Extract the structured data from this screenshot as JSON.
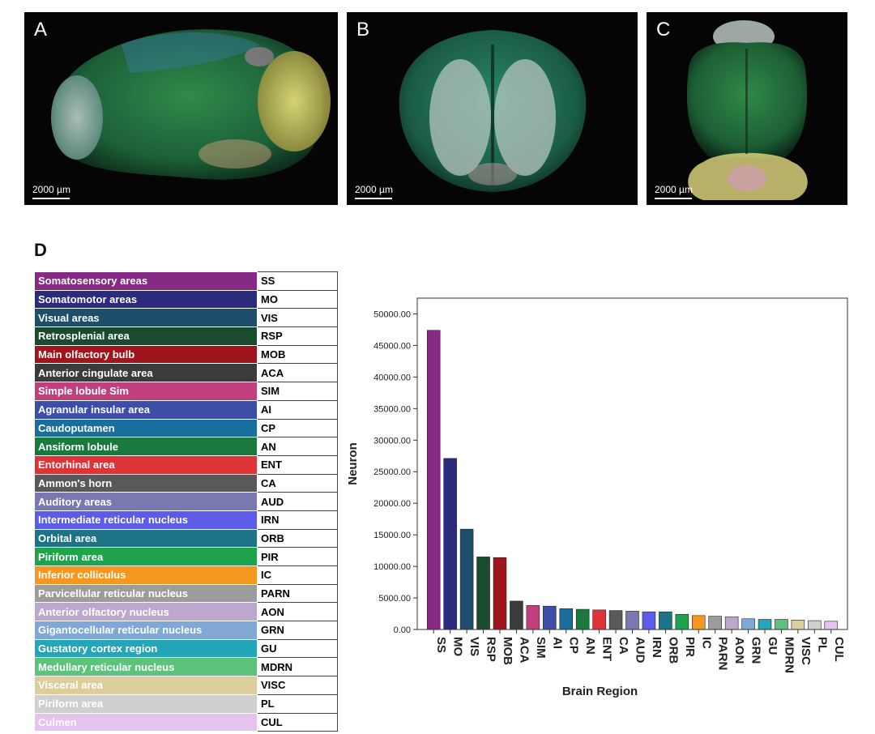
{
  "panels": [
    {
      "letter": "A",
      "scale": "2000 µm",
      "view": "sagittal"
    },
    {
      "letter": "B",
      "scale": "2000 µm",
      "view": "coronal"
    },
    {
      "letter": "C",
      "scale": "2000 µm",
      "view": "horizontal"
    }
  ],
  "panel_d_letter": "D",
  "legend": [
    {
      "name": "Somatosensory areas",
      "abbr": "SS",
      "color": "#862a86"
    },
    {
      "name": "Somatomotor areas",
      "abbr": "MO",
      "color": "#2b2a7c"
    },
    {
      "name": "Visual areas",
      "abbr": "VIS",
      "color": "#1d4f6c"
    },
    {
      "name": "Retrosplenial area",
      "abbr": "RSP",
      "color": "#1b4b2f"
    },
    {
      "name": "Main olfactory bulb",
      "abbr": "MOB",
      "color": "#a0141c"
    },
    {
      "name": "Anterior cingulate area",
      "abbr": "ACA",
      "color": "#3b3b3b"
    },
    {
      "name": "Simple lobule Sim",
      "abbr": "SIM",
      "color": "#c0407e"
    },
    {
      "name": "Agranular insular area",
      "abbr": "AI",
      "color": "#3c4ea8"
    },
    {
      "name": "Caudoputamen",
      "abbr": "CP",
      "color": "#1a6e9e"
    },
    {
      "name": "Ansiform lobule",
      "abbr": "AN",
      "color": "#1a7a3e"
    },
    {
      "name": "Entorhinal area",
      "abbr": "ENT",
      "color": "#de3337"
    },
    {
      "name": "Ammon's horn",
      "abbr": "CA",
      "color": "#595959"
    },
    {
      "name": "Auditory areas",
      "abbr": "AUD",
      "color": "#7a78b0"
    },
    {
      "name": "Intermediate reticular nucleus",
      "abbr": "IRN",
      "color": "#5c5ce8"
    },
    {
      "name": "Orbital area",
      "abbr": "ORB",
      "color": "#1e7386"
    },
    {
      "name": "Piriform area",
      "abbr": "PIR",
      "color": "#1fa34c"
    },
    {
      "name": "Inferior colliculus",
      "abbr": "IC",
      "color": "#f6981f"
    },
    {
      "name": "Parvicellular reticular nucleus",
      "abbr": "PARN",
      "color": "#9c9c9c"
    },
    {
      "name": "Anterior olfactory nucleus",
      "abbr": "AON",
      "color": "#bca8cc"
    },
    {
      "name": "Gigantocellular reticular nucleus",
      "abbr": "GRN",
      "color": "#7fa8d4"
    },
    {
      "name": "Gustatory cortex region",
      "abbr": "GU",
      "color": "#22a6b8"
    },
    {
      "name": "Medullary reticular nucleus",
      "abbr": "MDRN",
      "color": "#5cc27c"
    },
    {
      "name": "Visceral area",
      "abbr": "VISC",
      "color": "#dccd9c"
    },
    {
      "name": "Piriform area",
      "abbr": "PL",
      "color": "#cfcfcf"
    },
    {
      "name": "Culmen",
      "abbr": "CUL",
      "color": "#e6c2ee"
    }
  ],
  "chart_data": {
    "type": "bar",
    "xlabel": "Brain Region",
    "ylabel": "Neuron",
    "ylim": [
      0,
      52500
    ],
    "yticks": [
      "0.00",
      "5000.00",
      "10000.00",
      "15000.00",
      "20000.00",
      "25000.00",
      "30000.00",
      "35000.00",
      "40000.00",
      "45000.00",
      "50000.00"
    ],
    "categories": [
      "SS",
      "MO",
      "VIS",
      "RSP",
      "MOB",
      "ACA",
      "SIM",
      "AI",
      "CP",
      "AN",
      "ENT",
      "CA",
      "AUD",
      "IRN",
      "ORB",
      "PIR",
      "IC",
      "PARN",
      "AON",
      "GRN",
      "GU",
      "MDRN",
      "VISC",
      "PL",
      "CUL"
    ],
    "values": [
      47400,
      27100,
      15900,
      11500,
      11400,
      4500,
      3800,
      3700,
      3300,
      3200,
      3100,
      3000,
      2900,
      2800,
      2800,
      2400,
      2200,
      2100,
      2000,
      1700,
      1600,
      1600,
      1500,
      1400,
      1300
    ]
  }
}
